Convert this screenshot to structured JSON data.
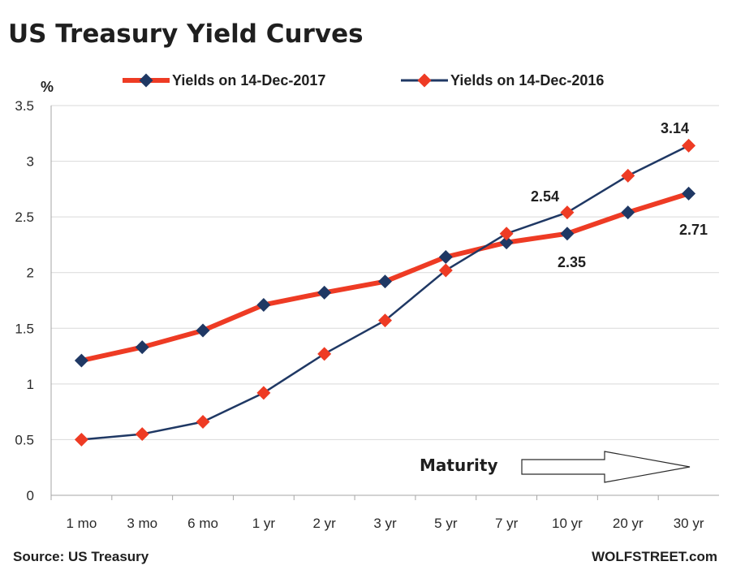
{
  "chart_data": {
    "type": "line",
    "title": "US Treasury Yield Curves",
    "ylabel": "%",
    "xlabel": "",
    "ylim": [
      0,
      3.5
    ],
    "yticks": [
      "0",
      "0.5",
      "1",
      "1.5",
      "2",
      "2.5",
      "3",
      "3.5"
    ],
    "categories": [
      "1 mo",
      "3 mo",
      "6 mo",
      "1 yr",
      "2 yr",
      "3 yr",
      "5 yr",
      "7 yr",
      "10 yr",
      "20 yr",
      "30 yr"
    ],
    "grid": "horizontal",
    "legend_position": "top",
    "series": [
      {
        "name": "Yields on 14-Dec-2017",
        "color": "#ee3b24",
        "marker_color": "#1f3864",
        "values": [
          1.21,
          1.33,
          1.48,
          1.71,
          1.82,
          1.92,
          2.14,
          2.27,
          2.35,
          2.54,
          2.71
        ]
      },
      {
        "name": "Yields on 14-Dec-2016",
        "color": "#1f3864",
        "marker_color": "#ee3b24",
        "values": [
          0.5,
          0.55,
          0.66,
          0.92,
          1.27,
          1.57,
          2.02,
          2.35,
          2.54,
          2.87,
          3.14
        ]
      }
    ],
    "annotations": [
      {
        "text": "3.14"
      },
      {
        "text": "2.54"
      },
      {
        "text": "2.71"
      },
      {
        "text": "2.35"
      }
    ],
    "arrow_label": "Maturity"
  },
  "footer": {
    "source": "Source: US Treasury",
    "brand": "WOLFSTREET.com"
  }
}
